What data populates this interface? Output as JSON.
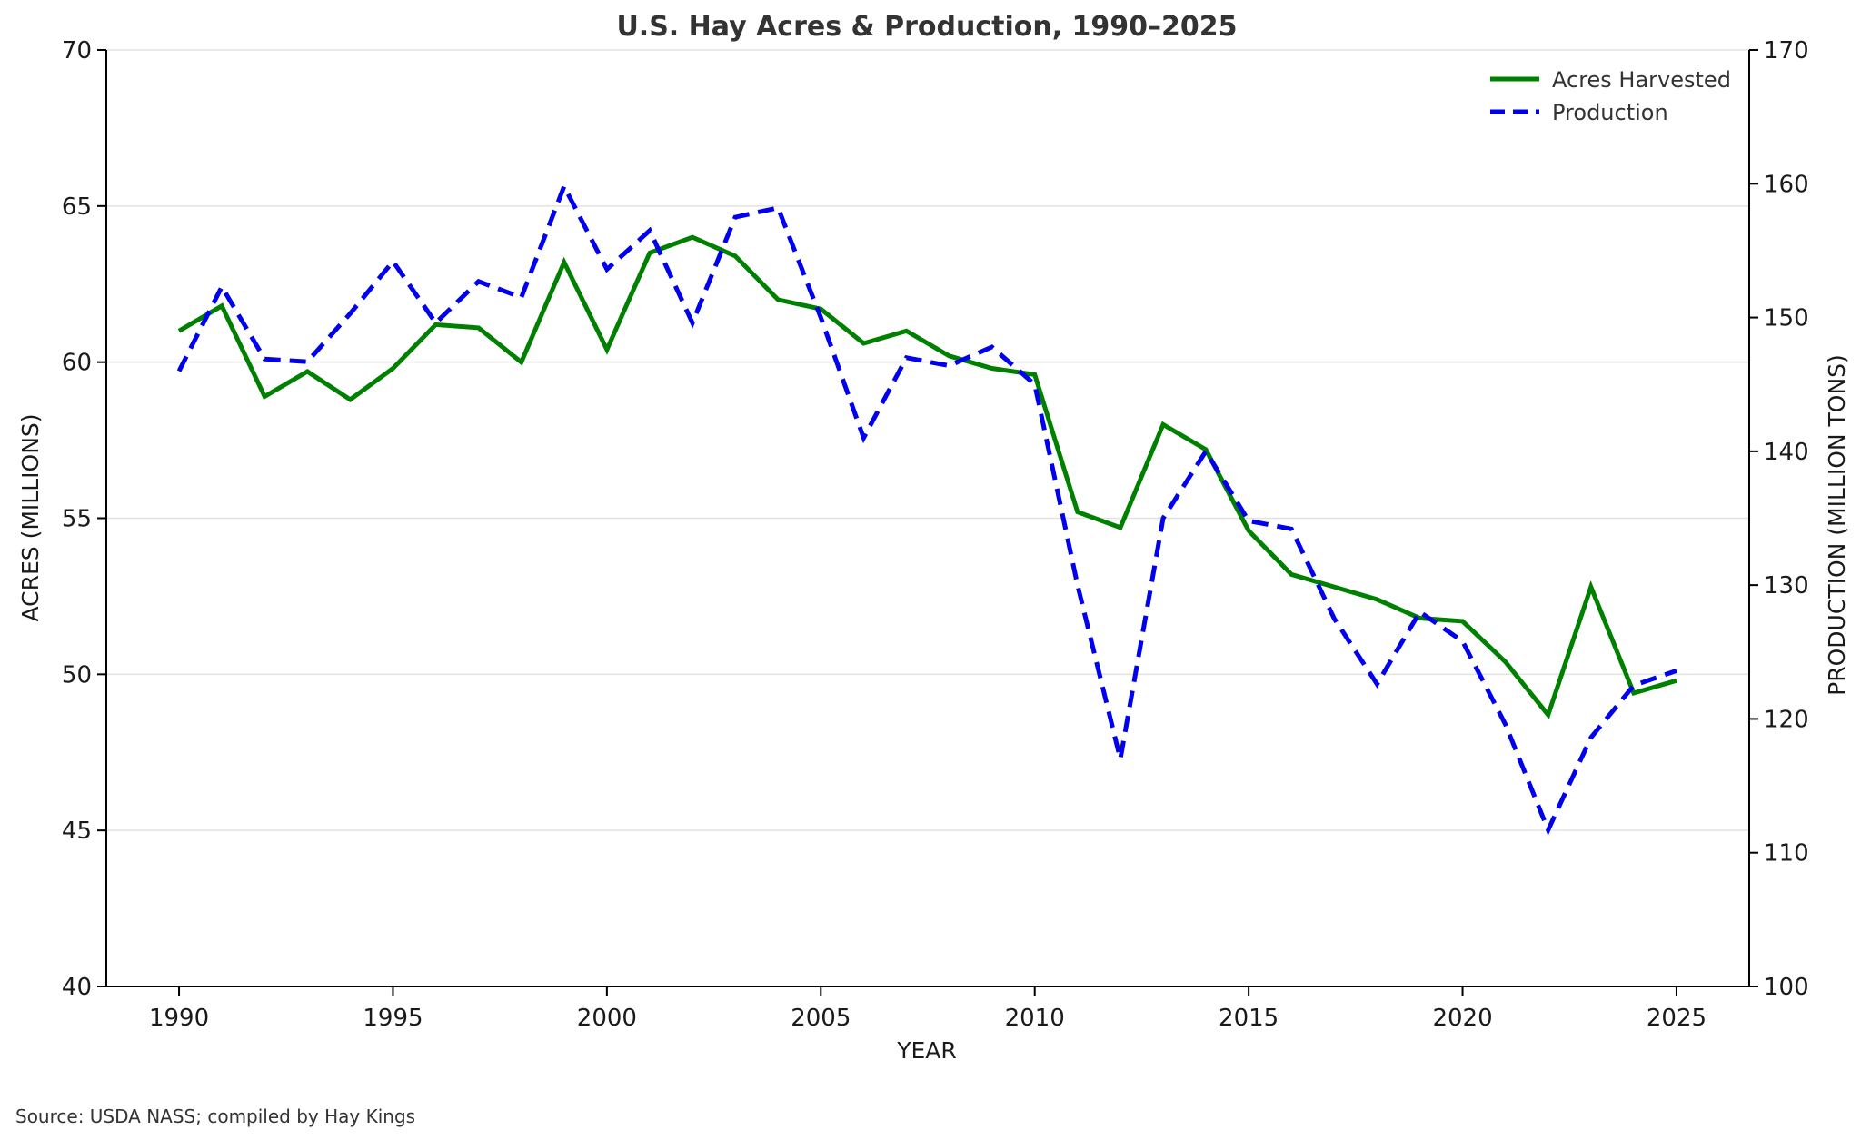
{
  "chart_data": {
    "type": "line",
    "title": "U.S. Hay Acres & Production, 1990–2025",
    "xlabel": "YEAR",
    "ylabel_left": "ACRES (MILLIONS)",
    "ylabel_right": "PRODUCTION (MILLION TONS)",
    "xlim": [
      1988.3,
      2026.7
    ],
    "ylim_left": [
      40,
      70
    ],
    "ylim_right": [
      100,
      170
    ],
    "xticks": [
      1990,
      1995,
      2000,
      2005,
      2010,
      2015,
      2020,
      2025
    ],
    "yticks_left": [
      40,
      45,
      50,
      55,
      60,
      65,
      70
    ],
    "yticks_right": [
      100,
      110,
      120,
      130,
      140,
      150,
      160,
      170
    ],
    "grid": "horizontal",
    "legend_position": "top-right",
    "x": [
      1990,
      1991,
      1992,
      1993,
      1994,
      1995,
      1996,
      1997,
      1998,
      1999,
      2000,
      2001,
      2002,
      2003,
      2004,
      2005,
      2006,
      2007,
      2008,
      2009,
      2010,
      2011,
      2012,
      2013,
      2014,
      2015,
      2016,
      2017,
      2018,
      2019,
      2020,
      2021,
      2022,
      2023,
      2024,
      2025
    ],
    "series": [
      {
        "name": "Acres Harvested",
        "axis": "left",
        "color": "#008000",
        "style": "solid",
        "values": [
          61.0,
          61.8,
          58.9,
          59.7,
          58.8,
          59.8,
          61.2,
          61.1,
          60.0,
          63.2,
          60.4,
          63.5,
          64.0,
          63.4,
          62.0,
          61.7,
          60.6,
          61.0,
          60.2,
          59.8,
          59.6,
          55.2,
          54.7,
          58.0,
          57.2,
          54.6,
          53.2,
          52.8,
          52.4,
          51.8,
          51.7,
          50.4,
          48.7,
          52.8,
          49.4,
          49.8
        ]
      },
      {
        "name": "Production",
        "axis": "right",
        "color": "#0000ee",
        "style": "dashed",
        "values": [
          146.0,
          152.3,
          146.9,
          146.7,
          150.3,
          154.2,
          149.6,
          152.7,
          151.5,
          159.8,
          153.6,
          156.5,
          149.6,
          157.5,
          158.2,
          150.0,
          141.0,
          147.0,
          146.4,
          147.8,
          145.0,
          130.0,
          117.0,
          135.0,
          140.0,
          134.8,
          134.2,
          127.5,
          122.6,
          128.0,
          125.8,
          119.6,
          111.7,
          118.6,
          122.5,
          123.6
        ]
      }
    ],
    "source": "Source: USDA NASS; compiled by Hay Kings"
  }
}
